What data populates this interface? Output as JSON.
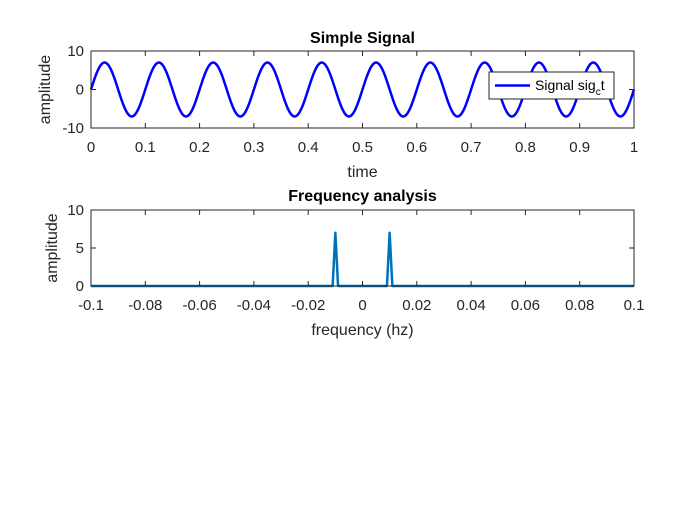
{
  "chart_data": [
    {
      "type": "line",
      "title": "Simple Signal",
      "xlabel": "time",
      "ylabel": "amplitude",
      "xlim": [
        0,
        1
      ],
      "ylim": [
        -10,
        10
      ],
      "xticks": [
        0,
        0.1,
        0.2,
        0.3,
        0.4,
        0.5,
        0.6,
        0.7,
        0.8,
        0.9,
        1
      ],
      "xtick_labels": [
        "0",
        "0.1",
        "0.2",
        "0.3",
        "0.4",
        "0.5",
        "0.6",
        "0.7",
        "0.8",
        "0.9",
        "1"
      ],
      "yticks": [
        -10,
        0,
        10
      ],
      "ytick_labels": [
        "-10",
        "0",
        "10"
      ],
      "grid": false,
      "legend_position": "top-right",
      "series": [
        {
          "name": "Signal sig",
          "name_subscript": "c",
          "name_suffix": "t",
          "color": "#0000ff",
          "function": "sine",
          "amplitude": 7,
          "frequency_hz": 10,
          "phase": 0,
          "x_range": [
            0,
            1
          ]
        }
      ]
    },
    {
      "type": "line",
      "title": "Frequency analysis",
      "xlabel": "frequency (hz)",
      "ylabel": "amplitude",
      "xlim": [
        -0.1,
        0.1
      ],
      "ylim": [
        0,
        10
      ],
      "xticks": [
        -0.1,
        -0.08,
        -0.06,
        -0.04,
        -0.02,
        0,
        0.02,
        0.04,
        0.06,
        0.08,
        0.1
      ],
      "xtick_labels": [
        "-0.1",
        "-0.08",
        "-0.06",
        "-0.04",
        "-0.02",
        "0",
        "0.02",
        "0.04",
        "0.06",
        "0.08",
        "0.1"
      ],
      "yticks": [
        0,
        5,
        10
      ],
      "ytick_labels": [
        "0",
        "5",
        "10"
      ],
      "grid": false,
      "series": [
        {
          "color": "#0072bd",
          "x": [
            -0.1,
            -0.011,
            -0.01,
            -0.009,
            0.009,
            0.01,
            0.011,
            0.1
          ],
          "y": [
            0,
            0,
            7,
            0,
            0,
            7,
            0,
            0
          ]
        }
      ]
    }
  ]
}
